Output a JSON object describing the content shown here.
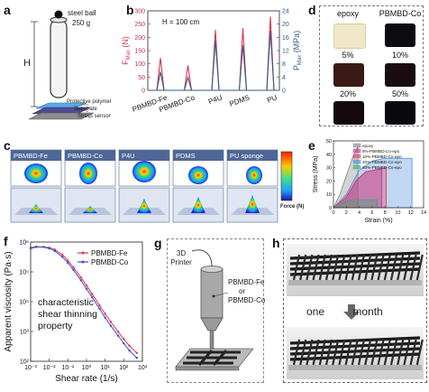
{
  "panel_labels": {
    "a": "a",
    "b": "b",
    "c": "c",
    "d": "d",
    "e": "e",
    "f": "f",
    "g": "g",
    "h": "h"
  },
  "panel_a": {
    "steel_ball": "steel ball",
    "mass": "250 g",
    "height_label": "H",
    "layers": [
      "Protective polymer",
      "Substrate",
      "Stress sensor"
    ]
  },
  "panel_c": {
    "titles": [
      "PBMBD-Fe",
      "PBMBD-Co",
      "P4U",
      "PDMS",
      "PU sponge"
    ],
    "colorbar_label": "Force (N)"
  },
  "panel_d": {
    "labels": [
      "epoxy",
      "PBMBD-Co",
      "5%",
      "10%",
      "20%",
      "50%"
    ]
  },
  "panel_g": {
    "printer_label": "3D Printer",
    "ink_label_1": "PBMBD-Fe",
    "ink_label_2": "or",
    "ink_label_3": "PBMBD-Co"
  },
  "panel_h": {
    "caption": "one month"
  },
  "chart_data": [
    {
      "id": "b",
      "type": "line",
      "annotation": "H = 100 cm",
      "categories": [
        "PBMBD-Fe",
        "PBMBD-Co",
        "P4U",
        "PDMS",
        "PU"
      ],
      "ylabel_left": "F_Max (N)",
      "ylabel_right": "P_Max (MPa)",
      "ylim_left": [
        0,
        300
      ],
      "ylim_right": [
        0,
        24
      ],
      "yticks_left": [
        "0",
        "50",
        "100",
        "150",
        "200",
        "250",
        "300"
      ],
      "yticks_right": [
        "0",
        "4",
        "8",
        "12",
        "16",
        "20",
        "24"
      ],
      "series": [
        {
          "axis": "left",
          "color": "#e0334d",
          "peaks": [
            122,
            94,
            228,
            235,
            278
          ]
        },
        {
          "axis": "right",
          "color": "#2f5d8a",
          "peaks": [
            5.6,
            3.9,
            15.0,
            13.6,
            18.0
          ]
        }
      ]
    },
    {
      "id": "e",
      "type": "area",
      "xlabel": "Strain (%)",
      "ylabel": "Stress (MPa)",
      "xlim": [
        0,
        14
      ],
      "ylim": [
        0,
        50
      ],
      "xticks": [
        "0",
        "2",
        "4",
        "6",
        "8",
        "10",
        "12",
        "14"
      ],
      "yticks": [
        "0",
        "10",
        "20",
        "30",
        "40",
        "50"
      ],
      "legend_position": "top-right",
      "series": [
        {
          "name": "epoxy",
          "color": "#808080",
          "x": [
            0,
            1,
            2,
            3,
            3.8
          ],
          "y": [
            0,
            10,
            24,
            38,
            46
          ]
        },
        {
          "name": "5%-PBMBD-Co-epo",
          "color": "#c0369c",
          "x": [
            0,
            2,
            3.5,
            5,
            7.5
          ],
          "y": [
            0,
            8,
            20,
            27,
            29
          ]
        },
        {
          "name": "10%-PBMBD-Co-epo",
          "color": "#e03c5a",
          "x": [
            0,
            2,
            3.5,
            5,
            8.2
          ],
          "y": [
            0,
            8,
            20,
            27,
            30
          ]
        },
        {
          "name": "20%-PBMBD-Co-epo",
          "color": "#4a90d9",
          "x": [
            0,
            2,
            4,
            6,
            8,
            12.2
          ],
          "y": [
            0,
            10,
            28,
            35,
            37,
            37
          ]
        },
        {
          "name": "50%-PBMBD-Co-epo",
          "color": "#3aa873",
          "x": [
            0,
            2,
            4,
            6.8
          ],
          "y": [
            0,
            5,
            6,
            6
          ]
        }
      ]
    },
    {
      "id": "f",
      "type": "line",
      "xlabel": "Shear rate (1/s)",
      "ylabel": "Apparent viscosity (Pa·s)",
      "xscale": "log",
      "yscale": "log",
      "xlim": [
        0.001,
        1000
      ],
      "ylim": [
        100,
        1000000
      ],
      "xticks": [
        "10⁻³",
        "10⁻²",
        "10⁻¹",
        "10⁰",
        "10¹",
        "10²",
        "10³"
      ],
      "yticks": [
        "10²",
        "10³",
        "10⁴",
        "10⁵",
        "10⁶"
      ],
      "annotation": [
        "characteristic",
        "shear thinning",
        "property"
      ],
      "legend_position": "top-right",
      "series": [
        {
          "name": "PBMBD-Fe",
          "color": "#e0334d",
          "x": [
            0.001,
            0.002,
            0.005,
            0.01,
            0.02,
            0.05,
            0.1,
            0.2,
            0.5,
            1,
            2,
            5,
            10,
            20,
            50,
            100,
            200,
            500
          ],
          "y": [
            600000,
            680000,
            690000,
            650000,
            560000,
            380000,
            240000,
            140000,
            65000,
            35000,
            18000,
            7500,
            3900,
            2100,
            980,
            560,
            330,
            190
          ]
        },
        {
          "name": "PBMBD-Co",
          "color": "#3c4fc9",
          "x": [
            0.001,
            0.002,
            0.005,
            0.01,
            0.02,
            0.05,
            0.1,
            0.2,
            0.5,
            1,
            2,
            5,
            10,
            20,
            50,
            100,
            200,
            500
          ],
          "y": [
            650000,
            700000,
            680000,
            610000,
            500000,
            320000,
            200000,
            115000,
            52000,
            27000,
            14000,
            5800,
            2900,
            1550,
            720,
            400,
            230,
            130
          ]
        }
      ]
    }
  ]
}
